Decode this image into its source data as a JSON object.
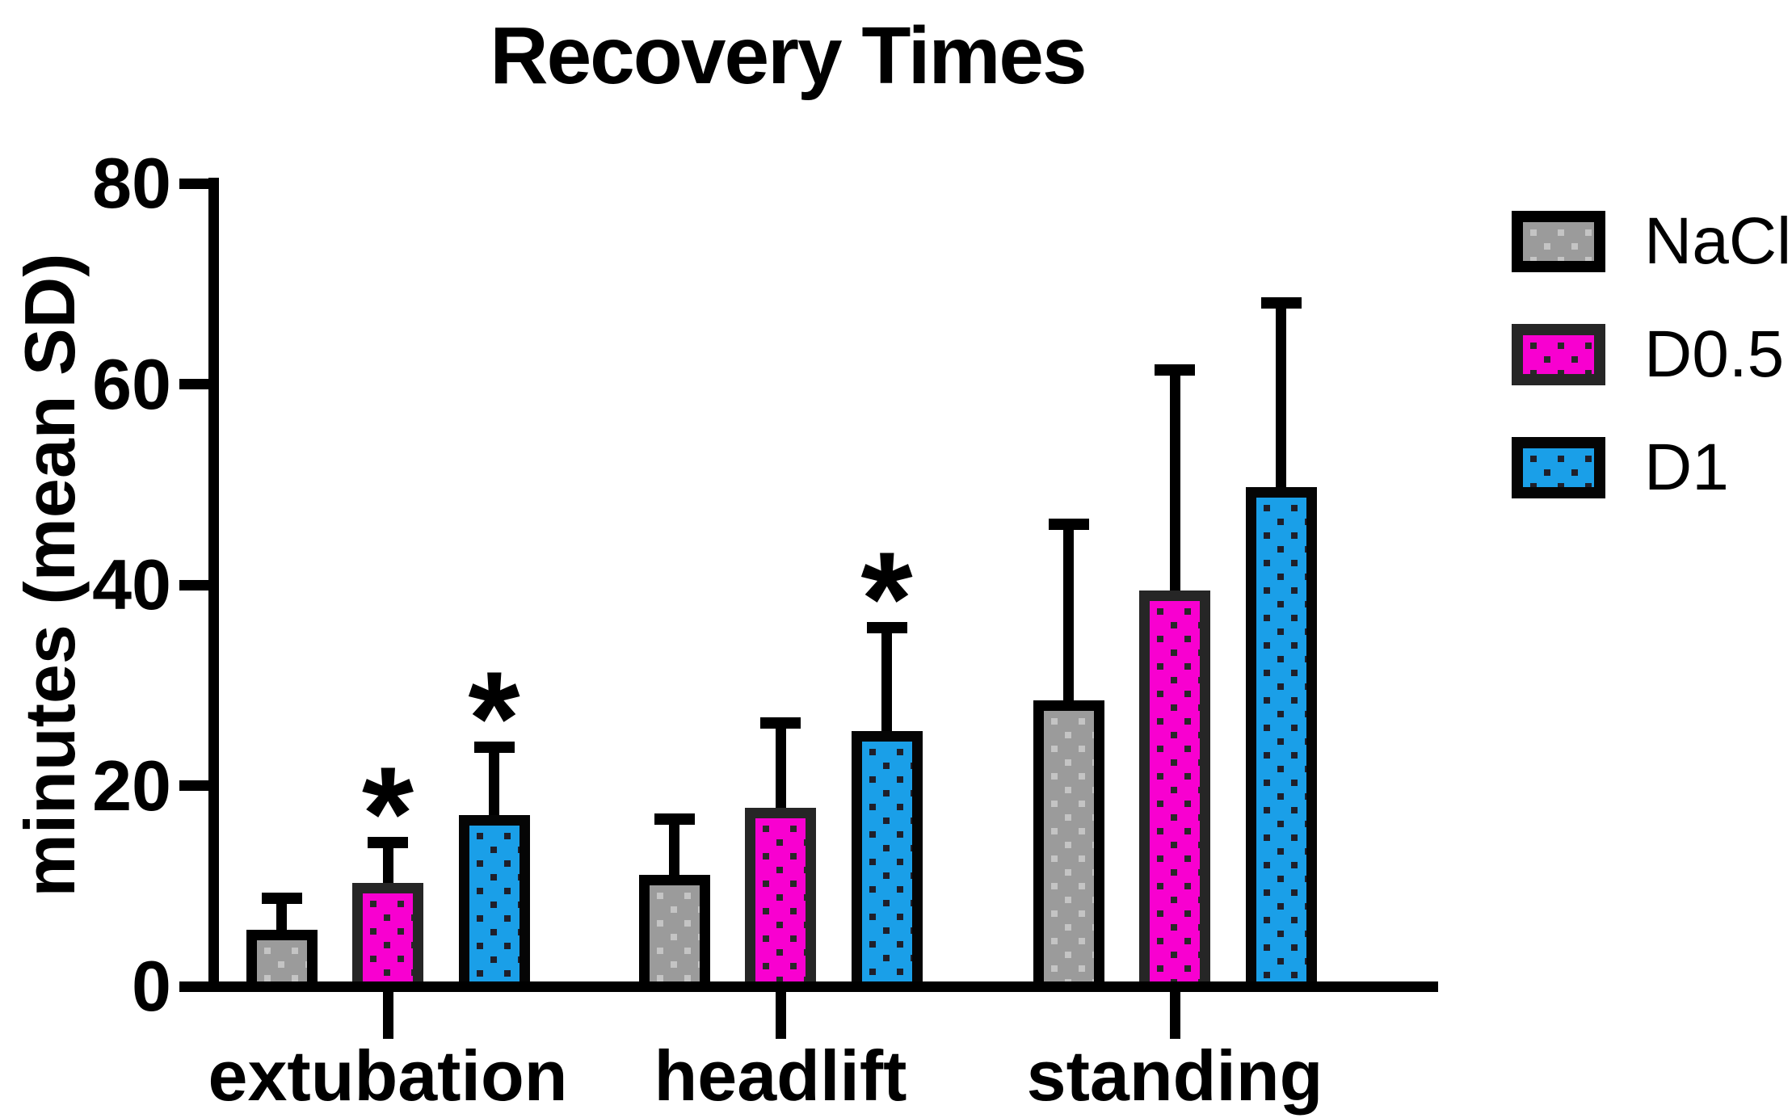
{
  "chart_data": {
    "type": "bar",
    "title": "Recovery Times",
    "ylabel": "minutes (mean SD)",
    "xlabel": "",
    "categories": [
      "extubation",
      "headlift",
      "standing"
    ],
    "series": [
      {
        "name": "NaCl",
        "fill_color": "#9B9B9B",
        "dot_color": "#C4C4C4",
        "border_color": "#000000",
        "values": [
          5.6,
          11.1,
          28.5
        ],
        "sd": [
          3.2,
          5.6,
          17.5
        ],
        "significant": [
          false,
          false,
          false
        ]
      },
      {
        "name": "D0.5",
        "fill_color": "#F800D0",
        "dot_color": "#282828",
        "border_color": "#262626",
        "values": [
          10.3,
          17.8,
          39.4
        ],
        "sd": [
          4.0,
          8.4,
          22.0
        ],
        "significant": [
          true,
          false,
          false
        ]
      },
      {
        "name": "D1",
        "fill_color": "#1A9FE8",
        "dot_color": "#1F1F2A",
        "border_color": "#050505",
        "values": [
          17.1,
          25.4,
          49.7
        ],
        "sd": [
          6.7,
          10.3,
          18.4
        ],
        "significant": [
          true,
          true,
          false
        ]
      }
    ],
    "ylim": [
      0,
      80
    ],
    "yticks": [
      "0",
      "20",
      "40",
      "60",
      "80"
    ],
    "ytick_values": [
      0,
      20,
      40,
      60,
      80
    ],
    "error_bars": "upper SD",
    "significance_marker": "*",
    "grid": false,
    "legend_position": "right",
    "axis_color": "#000000",
    "background_color": "#FFFFFF"
  }
}
